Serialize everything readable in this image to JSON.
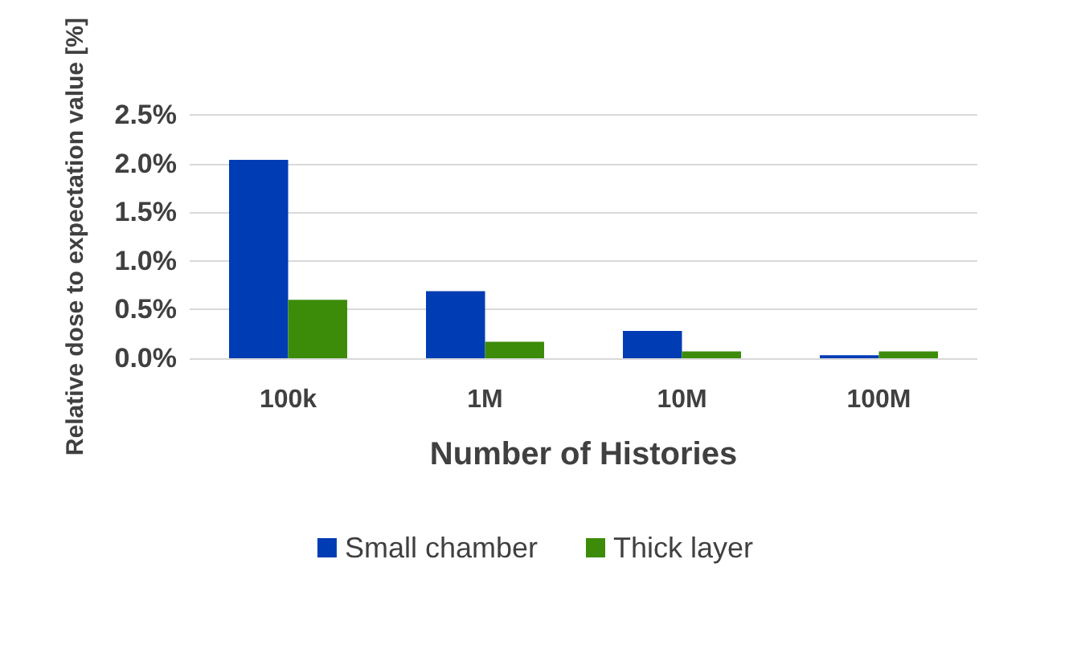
{
  "chart_data": {
    "type": "bar",
    "xlabel": "Number of Histories",
    "ylabel": "Relative dose to expectation value [%]",
    "categories": [
      "100k",
      "1M",
      "10M",
      "100M"
    ],
    "series": [
      {
        "name": "Small chamber",
        "color": "#003cb4",
        "values": [
          2.04,
          0.69,
          0.28,
          0.03
        ]
      },
      {
        "name": "Thick layer",
        "color": "#3c8c0a",
        "values": [
          0.6,
          0.17,
          0.07,
          0.07
        ]
      }
    ],
    "ylim": [
      0,
      2.5
    ],
    "yticks": [
      {
        "value": 0,
        "label": "0.0%"
      },
      {
        "value": 0.5,
        "label": "0.5%"
      },
      {
        "value": 1,
        "label": "1.0%"
      },
      {
        "value": 1.5,
        "label": "1.5%"
      },
      {
        "value": 2,
        "label": "2.0%"
      },
      {
        "value": 2.5,
        "label": "2.5%"
      }
    ],
    "grid": "y",
    "legend": "bottom"
  }
}
